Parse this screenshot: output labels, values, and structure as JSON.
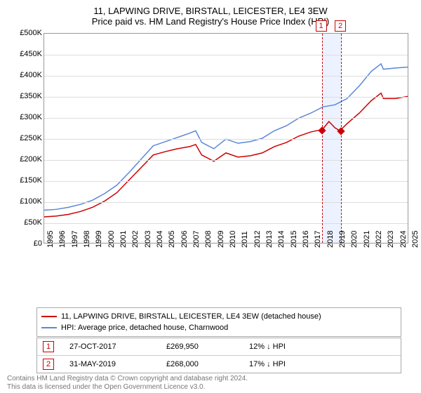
{
  "title": "11, LAPWING DRIVE, BIRSTALL, LEICESTER, LE4 3EW",
  "subtitle": "Price paid vs. HM Land Registry's House Price Index (HPI)",
  "title_fontsize": 13,
  "y_axis": {
    "min": 0,
    "max": 500000,
    "step": 50000,
    "labels": [
      "£0",
      "£50K",
      "£100K",
      "£150K",
      "£200K",
      "£250K",
      "£300K",
      "£350K",
      "£400K",
      "£450K",
      "£500K"
    ]
  },
  "x_axis": {
    "min": 1995,
    "max": 2025,
    "labels": [
      "1995",
      "1996",
      "1997",
      "1998",
      "1999",
      "2000",
      "2001",
      "2002",
      "2003",
      "2004",
      "2005",
      "2006",
      "2007",
      "2008",
      "2009",
      "2010",
      "2011",
      "2012",
      "2013",
      "2014",
      "2015",
      "2016",
      "2017",
      "2018",
      "2019",
      "2020",
      "2021",
      "2022",
      "2023",
      "2024",
      "2025"
    ]
  },
  "colors": {
    "property_line": "#cc0000",
    "hpi_line": "#5b87d6",
    "grid": "#dddddd",
    "border": "#999999",
    "highlight_band": "rgba(100,150,255,0.12)",
    "badge_border": "#cc0000",
    "text": "#000000",
    "attr_text": "#777777",
    "background": "#ffffff"
  },
  "line_width": 1.5,
  "series": {
    "property": {
      "label": "11, LAPWING DRIVE, BIRSTALL, LEICESTER, LE4 3EW (detached house)",
      "points": [
        [
          1995,
          62000
        ],
        [
          1996,
          64000
        ],
        [
          1997,
          68000
        ],
        [
          1998,
          75000
        ],
        [
          1999,
          85000
        ],
        [
          2000,
          100000
        ],
        [
          2001,
          120000
        ],
        [
          2002,
          150000
        ],
        [
          2003,
          180000
        ],
        [
          2004,
          210000
        ],
        [
          2005,
          218000
        ],
        [
          2006,
          225000
        ],
        [
          2007,
          230000
        ],
        [
          2007.5,
          235000
        ],
        [
          2008,
          210000
        ],
        [
          2009,
          195000
        ],
        [
          2010,
          215000
        ],
        [
          2011,
          205000
        ],
        [
          2012,
          208000
        ],
        [
          2013,
          215000
        ],
        [
          2014,
          230000
        ],
        [
          2015,
          240000
        ],
        [
          2016,
          255000
        ],
        [
          2017,
          265000
        ],
        [
          2017.82,
          269950
        ],
        [
          2018,
          272000
        ],
        [
          2018.5,
          290000
        ],
        [
          2019,
          275000
        ],
        [
          2019.41,
          268000
        ],
        [
          2020,
          285000
        ],
        [
          2021,
          310000
        ],
        [
          2022,
          340000
        ],
        [
          2022.8,
          358000
        ],
        [
          2023,
          345000
        ],
        [
          2024,
          345000
        ],
        [
          2025,
          350000
        ]
      ]
    },
    "hpi": {
      "label": "HPI: Average price, detached house, Charnwood",
      "points": [
        [
          1995,
          78000
        ],
        [
          1996,
          80000
        ],
        [
          1997,
          85000
        ],
        [
          1998,
          92000
        ],
        [
          1999,
          102000
        ],
        [
          2000,
          118000
        ],
        [
          2001,
          138000
        ],
        [
          2002,
          168000
        ],
        [
          2003,
          200000
        ],
        [
          2004,
          232000
        ],
        [
          2005,
          242000
        ],
        [
          2006,
          252000
        ],
        [
          2007,
          262000
        ],
        [
          2007.5,
          268000
        ],
        [
          2008,
          240000
        ],
        [
          2009,
          225000
        ],
        [
          2010,
          248000
        ],
        [
          2011,
          238000
        ],
        [
          2012,
          242000
        ],
        [
          2013,
          250000
        ],
        [
          2014,
          268000
        ],
        [
          2015,
          280000
        ],
        [
          2016,
          298000
        ],
        [
          2017,
          310000
        ],
        [
          2018,
          325000
        ],
        [
          2019,
          330000
        ],
        [
          2020,
          345000
        ],
        [
          2021,
          375000
        ],
        [
          2022,
          410000
        ],
        [
          2022.8,
          428000
        ],
        [
          2023,
          415000
        ],
        [
          2024,
          418000
        ],
        [
          2025,
          420000
        ]
      ]
    }
  },
  "highlight_band": {
    "start": 2017.82,
    "end": 2019.41
  },
  "markers": [
    {
      "badge": "1",
      "x": 2017.82,
      "y": 269950
    },
    {
      "badge": "2",
      "x": 2019.41,
      "y": 268000
    }
  ],
  "transactions": [
    {
      "badge": "1",
      "date": "27-OCT-2017",
      "price": "£269,950",
      "diff": "12% ↓ HPI"
    },
    {
      "badge": "2",
      "date": "31-MAY-2019",
      "price": "£268,000",
      "diff": "17% ↓ HPI"
    }
  ],
  "attribution_line1": "Contains HM Land Registry data © Crown copyright and database right 2024.",
  "attribution_line2": "This data is licensed under the Open Government Licence v3.0."
}
